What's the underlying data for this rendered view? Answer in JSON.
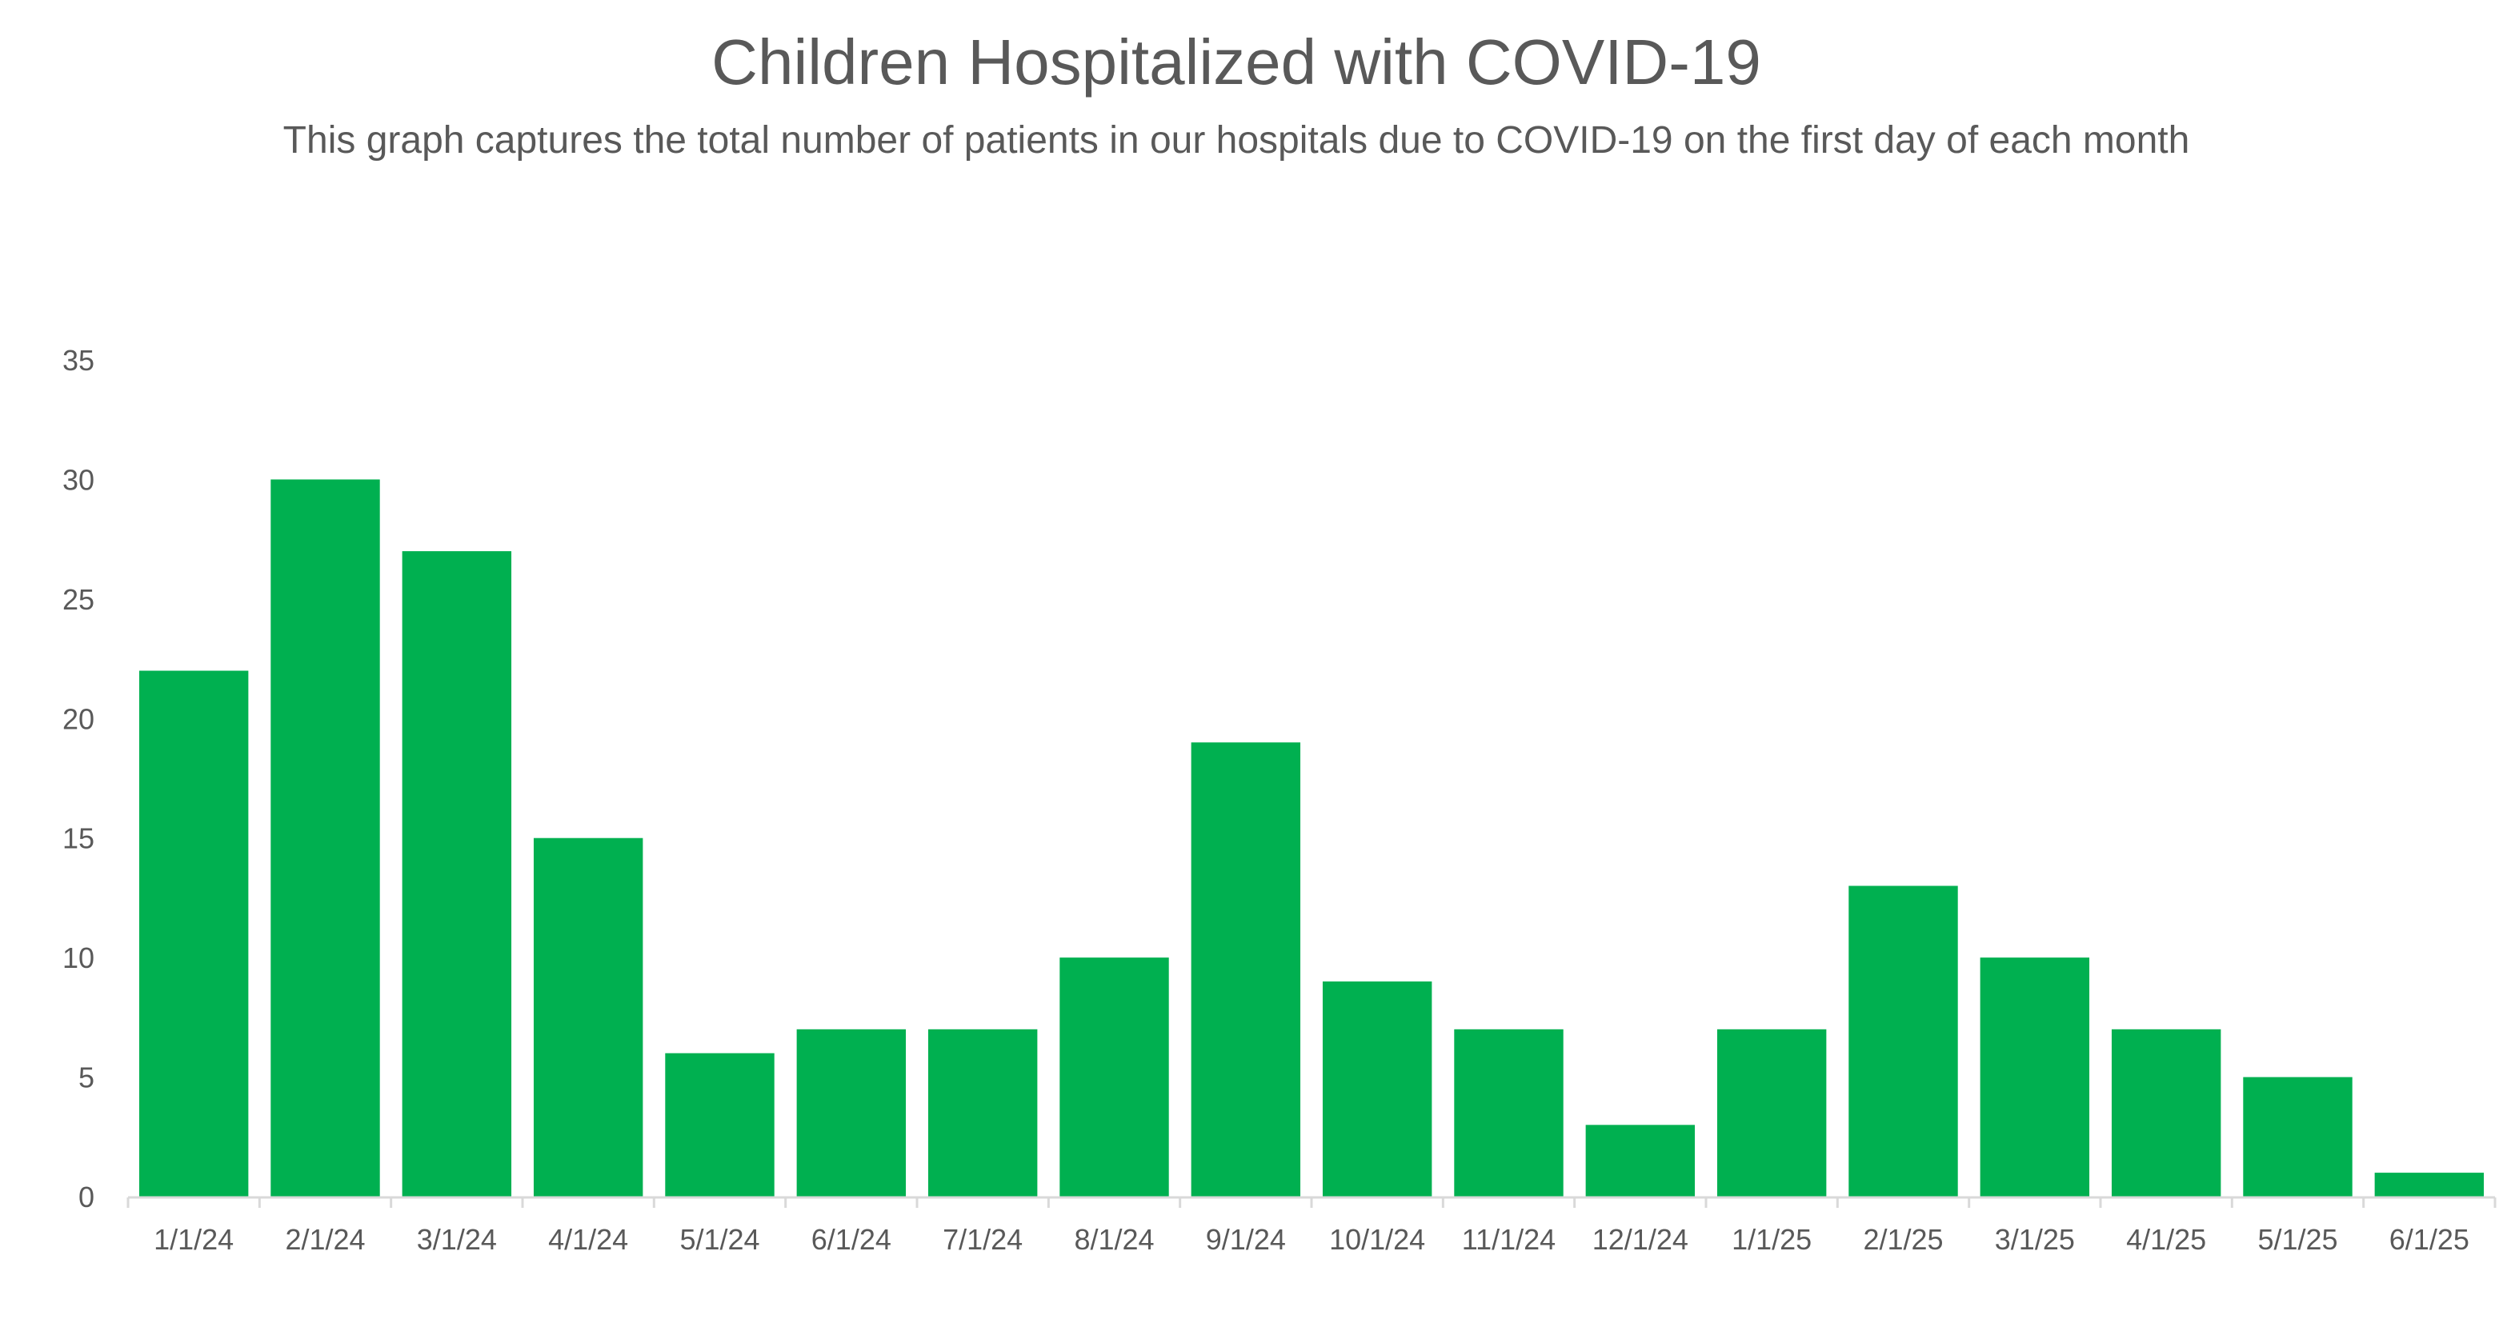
{
  "chart_data": {
    "type": "bar",
    "title": "Children Hospitalized with COVID-19",
    "subtitle": "This graph captures the total number of patients in our hospitals due to COVID-19 on the first day of each month",
    "xlabel": "",
    "ylabel": "",
    "categories": [
      "1/1/24",
      "2/1/24",
      "3/1/24",
      "4/1/24",
      "5/1/24",
      "6/1/24",
      "7/1/24",
      "8/1/24",
      "9/1/24",
      "10/1/24",
      "11/1/24",
      "12/1/24",
      "1/1/25",
      "2/1/25",
      "3/1/25",
      "4/1/25",
      "5/1/25",
      "6/1/25"
    ],
    "values": [
      22,
      30,
      27,
      15,
      6,
      7,
      7,
      10,
      19,
      9,
      7,
      3,
      7,
      13,
      10,
      7,
      5,
      1
    ],
    "ylim": [
      0,
      35
    ],
    "yticks": [
      0,
      5,
      10,
      15,
      20,
      25,
      30,
      35
    ],
    "grid": false,
    "legend": "none",
    "bar_color": "#00B050",
    "axis_color": "#D9D9D9",
    "text_color": "#595959"
  }
}
